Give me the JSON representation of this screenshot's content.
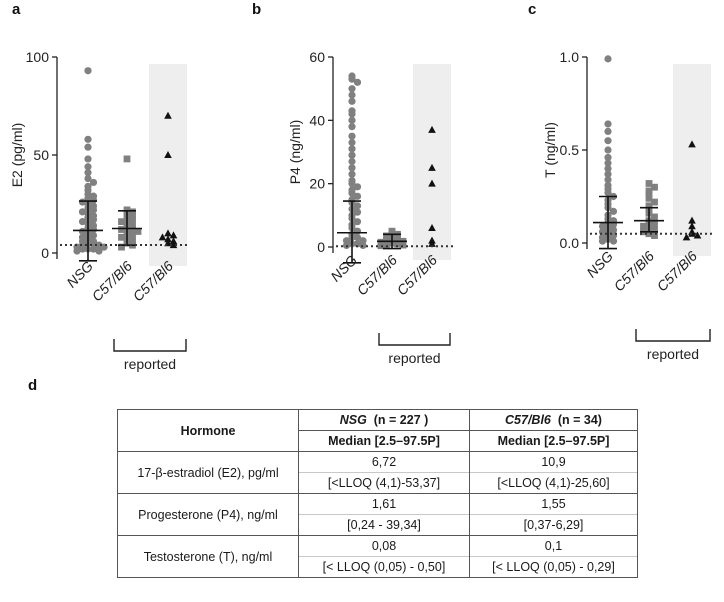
{
  "colors": {
    "grey": "#808080",
    "dark": "#111111",
    "shade": "#eeeeee",
    "pale": "#bfbfbf"
  },
  "chart_data": [
    {
      "type": "scatter",
      "panel_label": "a",
      "ylabel": "E2 (pg/ml)",
      "ylim": [
        0,
        100
      ],
      "yticks": [
        "0",
        "50",
        "100"
      ],
      "categories": [
        "NSG",
        "C57/Bl6",
        "C57/Bl6"
      ],
      "bracket_label": "reported",
      "lloq": 4.1,
      "series": [
        {
          "name": "NSG",
          "marker": "circle",
          "mean": 11.5,
          "sd_low": -4,
          "sd_high": 26.5,
          "values": [
            93,
            58,
            54,
            48,
            44,
            41,
            38,
            36,
            34,
            32,
            30,
            29,
            28,
            27,
            26,
            25,
            24,
            23,
            22,
            21,
            20,
            19,
            18,
            17,
            16,
            15,
            14,
            13,
            12,
            11,
            10,
            9,
            8,
            7,
            6,
            6,
            5,
            5,
            4,
            4,
            3,
            3,
            2,
            2,
            2,
            1,
            1
          ]
        },
        {
          "name": "C57/Bl6",
          "marker": "square",
          "mean": 12.5,
          "sd_low": 4,
          "sd_high": 21.5,
          "values": [
            48,
            22,
            21,
            20,
            19,
            18,
            17,
            16,
            15,
            14,
            13,
            12,
            12,
            11,
            10,
            9,
            8,
            7,
            6,
            5,
            4,
            3
          ]
        },
        {
          "name": "C57/Bl6 reported",
          "marker": "triangle",
          "shaded": true,
          "values": [
            70,
            50,
            10,
            9,
            8,
            7,
            6,
            5,
            4
          ]
        }
      ]
    },
    {
      "type": "scatter",
      "panel_label": "b",
      "ylabel": "P4 (ng/ml)",
      "ylim": [
        0,
        60
      ],
      "yticks": [
        "0",
        "20",
        "40",
        "60"
      ],
      "categories": [
        "NSG",
        "C57/Bl6",
        "C57/Bl6"
      ],
      "bracket_label": "reported",
      "lloq": 0.24,
      "series": [
        {
          "name": "NSG",
          "marker": "circle",
          "mean": 4.5,
          "sd_low": -5,
          "sd_high": 14.5,
          "values": [
            54,
            53,
            52,
            50,
            48,
            46,
            43,
            42,
            40,
            38,
            35,
            33,
            31,
            29,
            27,
            25,
            23,
            21,
            20,
            19,
            18,
            17,
            16,
            15,
            14,
            13,
            12,
            11,
            10,
            9,
            8,
            7,
            6,
            5,
            4,
            3,
            3,
            2,
            2,
            1,
            1,
            0.5,
            0.5
          ]
        },
        {
          "name": "C57/Bl6",
          "marker": "square",
          "mean": 1.8,
          "sd_low": -0.5,
          "sd_high": 4,
          "values": [
            5,
            4.5,
            4,
            3.5,
            3,
            2.5,
            2,
            1.8,
            1.5,
            1.2,
            1,
            0.8,
            0.6,
            0.4
          ]
        },
        {
          "name": "C57/Bl6 reported",
          "marker": "triangle",
          "shaded": true,
          "values": [
            37,
            25,
            20,
            6,
            2,
            1
          ]
        }
      ]
    },
    {
      "type": "scatter",
      "panel_label": "c",
      "ylabel": "T (ng/ml)",
      "ylim": [
        0,
        1.0
      ],
      "yticks": [
        "0.0",
        "0.5",
        "1.0"
      ],
      "categories": [
        "NSG",
        "C57/Bl6",
        "C57/Bl6"
      ],
      "bracket_label": "reported",
      "lloq": 0.05,
      "series": [
        {
          "name": "NSG",
          "marker": "circle",
          "mean": 0.11,
          "sd_low": -0.03,
          "sd_high": 0.25,
          "values": [
            0.99,
            0.64,
            0.6,
            0.55,
            0.5,
            0.46,
            0.43,
            0.4,
            0.37,
            0.34,
            0.31,
            0.29,
            0.27,
            0.25,
            0.23,
            0.21,
            0.19,
            0.17,
            0.15,
            0.13,
            0.12,
            0.11,
            0.1,
            0.09,
            0.08,
            0.07,
            0.06,
            0.05,
            0.04,
            0.03,
            0.02,
            0.01,
            0.01
          ]
        },
        {
          "name": "C57/Bl6",
          "marker": "square",
          "mean": 0.12,
          "sd_low": 0.06,
          "sd_high": 0.19,
          "values": [
            0.32,
            0.3,
            0.28,
            0.26,
            0.24,
            0.22,
            0.2,
            0.18,
            0.16,
            0.14,
            0.12,
            0.11,
            0.1,
            0.09,
            0.08,
            0.07,
            0.06,
            0.05,
            0.04
          ]
        },
        {
          "name": "C57/Bl6 reported",
          "marker": "triangle",
          "shaded": true,
          "values": [
            0.53,
            0.12,
            0.09,
            0.06,
            0.05,
            0.04,
            0.03
          ]
        }
      ]
    }
  ],
  "table": {
    "panel_label": "d",
    "header": {
      "hormone": "Hormone",
      "nsg_name": "NSG",
      "nsg_n": "(n = 227 )",
      "c57_name": "C57/Bl6",
      "c57_n": "(n = 34)",
      "median_label": "Median [2.5–97.5P]"
    },
    "rows": [
      {
        "hormone": "17-β-estradiol (E2), pg/ml",
        "nsg_median": "6,72",
        "nsg_range": "[<LLOQ (4,1)-53,37]",
        "c57_median": "10,9",
        "c57_range": "[<LLOQ (4,1)-25,60]"
      },
      {
        "hormone": "Progesterone (P4), ng/ml",
        "nsg_median": "1,61",
        "nsg_range": "[0,24 - 39,34]",
        "c57_median": "1,55",
        "c57_range": "[0,37-6,29]"
      },
      {
        "hormone": "Testosterone (T), ng/ml",
        "nsg_median": "0,08",
        "nsg_range": "[< LLOQ (0,05) - 0,50]",
        "c57_median": "0,1",
        "c57_range": "[< LLOQ (0,05) - 0,29]"
      }
    ]
  }
}
